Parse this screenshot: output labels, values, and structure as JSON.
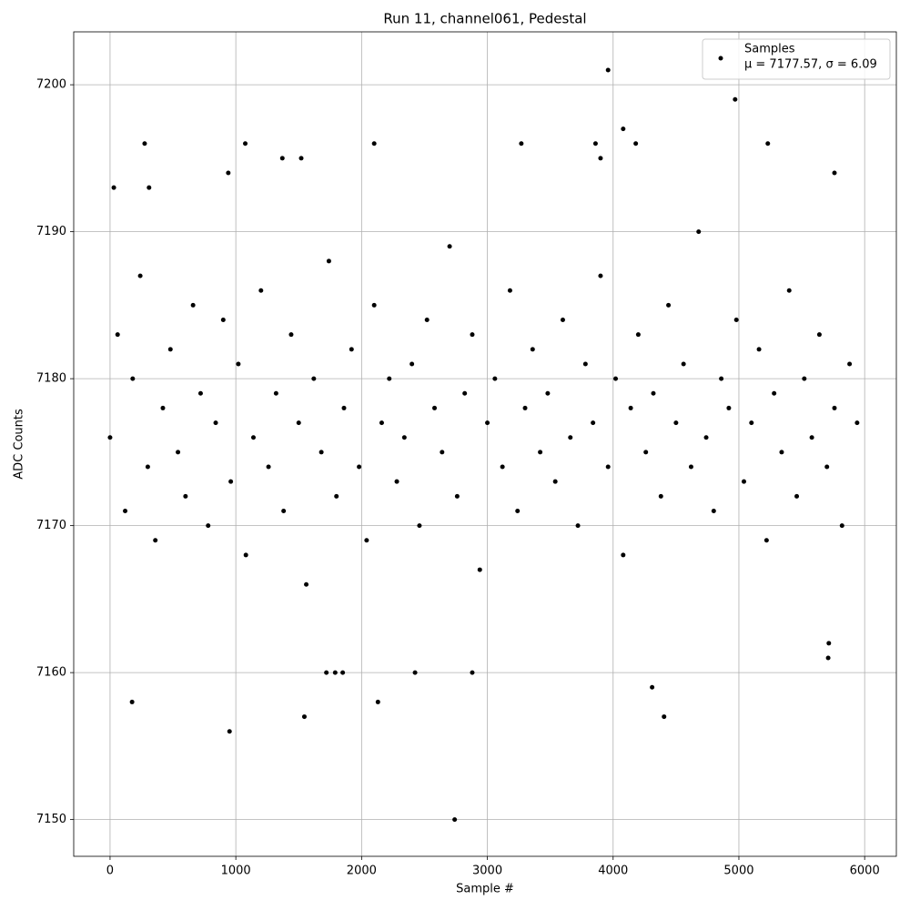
{
  "chart_data": {
    "type": "scatter",
    "title": "Run 11, channel061, Pedestal",
    "x_label": "Sample #",
    "y_label": "ADC Counts",
    "xlim": [
      -289,
      6252
    ],
    "ylim": [
      7147.5,
      7203.6
    ],
    "xticks": [
      0,
      1000,
      2000,
      3000,
      4000,
      5000,
      6000
    ],
    "yticks": [
      7150,
      7160,
      7170,
      7180,
      7190,
      7200
    ],
    "grid": true,
    "legend": "upper right",
    "series": [
      {
        "name": "Samples",
        "legend_subtitle": "μ = 7177.57, σ = 6.09",
        "color": "#000000",
        "x": [
          0,
          60,
          120,
          180,
          240,
          300,
          360,
          420,
          480,
          540,
          600,
          660,
          720,
          780,
          840,
          900,
          960,
          1020,
          1080,
          1140,
          1200,
          1260,
          1320,
          1380,
          1440,
          1500,
          1560,
          1620,
          1680,
          1740,
          1800,
          1860,
          1920,
          1980,
          2040,
          2100,
          2160,
          2220,
          2280,
          2340,
          2400,
          2460,
          2520,
          2580,
          2640,
          2700,
          2760,
          2820,
          2880,
          2940,
          3000,
          3060,
          3120,
          3180,
          3240,
          3300,
          3360,
          3420,
          3480,
          3540,
          3600,
          3660,
          3720,
          3780,
          3840,
          3900,
          3960,
          4020,
          4080,
          4140,
          4200,
          4260,
          4320,
          4380,
          4440,
          4500,
          4560,
          4620,
          4680,
          4740,
          4800,
          4860,
          4920,
          4980,
          5040,
          5100,
          5160,
          5220,
          5280,
          5340,
          5400,
          5460,
          5520,
          5580,
          5640,
          5700,
          5760,
          5820,
          5880,
          5940,
          30,
          175,
          275,
          310,
          950,
          940,
          1075,
          1545,
          1370,
          1520,
          2100,
          2130,
          2425,
          2740,
          2880,
          3960,
          4080,
          4180,
          4310,
          4405,
          4970,
          5230,
          5760,
          1720,
          1790,
          1850,
          5710,
          5715,
          3270,
          3860,
          3900
        ],
        "values": [
          7176,
          7183,
          7171,
          7180,
          7187,
          7174,
          7169,
          7178,
          7182,
          7175,
          7172,
          7185,
          7179,
          7170,
          7177,
          7184,
          7173,
          7181,
          7168,
          7176,
          7186,
          7174,
          7179,
          7171,
          7183,
          7177,
          7166,
          7180,
          7175,
          7188,
          7172,
          7178,
          7182,
          7174,
          7169,
          7185,
          7177,
          7180,
          7173,
          7176,
          7181,
          7170,
          7184,
          7178,
          7175,
          7189,
          7172,
          7179,
          7183,
          7167,
          7177,
          7180,
          7174,
          7186,
          7171,
          7178,
          7182,
          7175,
          7179,
          7173,
          7184,
          7176,
          7170,
          7181,
          7177,
          7187,
          7174,
          7180,
          7168,
          7178,
          7183,
          7175,
          7179,
          7172,
          7185,
          7177,
          7181,
          7174,
          7190,
          7176,
          7171,
          7180,
          7178,
          7184,
          7173,
          7177,
          7182,
          7169,
          7179,
          7175,
          7186,
          7172,
          7180,
          7176,
          7183,
          7174,
          7178,
          7170,
          7181,
          7177,
          7193,
          7158,
          7196,
          7193,
          7156,
          7194,
          7196,
          7157,
          7195,
          7195,
          7196,
          7158,
          7160,
          7150,
          7160,
          7201,
          7197,
          7196,
          7159,
          7157,
          7199,
          7196,
          7194,
          7160,
          7160,
          7160,
          7161,
          7162,
          7196,
          7196,
          7195
        ]
      }
    ]
  }
}
